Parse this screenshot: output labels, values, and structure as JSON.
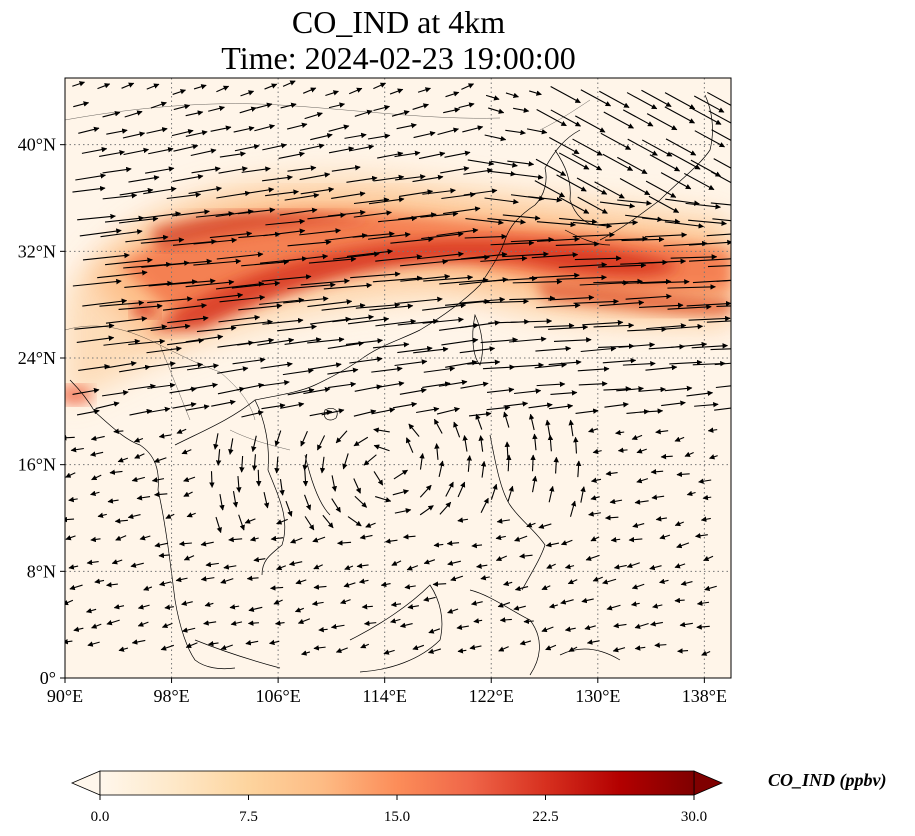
{
  "title": {
    "line1": "CO_IND at 4km",
    "line2": "Time: 2024-02-23 19:00:00"
  },
  "map": {
    "extent": {
      "lon_min": 90,
      "lon_max": 140,
      "lat_min": 0,
      "lat_max": 45
    },
    "gridlines": "dotted",
    "lon_ticks": [
      {
        "value": 90,
        "label": "90°E"
      },
      {
        "value": 98,
        "label": "98°E"
      },
      {
        "value": 106,
        "label": "106°E"
      },
      {
        "value": 114,
        "label": "114°E"
      },
      {
        "value": 122,
        "label": "122°E"
      },
      {
        "value": 130,
        "label": "130°E"
      },
      {
        "value": 138,
        "label": "138°E"
      }
    ],
    "lat_ticks": [
      {
        "value": 0,
        "label": "0°"
      },
      {
        "value": 8,
        "label": "8°N"
      },
      {
        "value": 16,
        "label": "16°N"
      },
      {
        "value": 24,
        "label": "24°N"
      },
      {
        "value": 32,
        "label": "32°N"
      },
      {
        "value": 40,
        "label": "40°N"
      }
    ],
    "field": "CO_IND concentration (OrRd colormap)",
    "plume_band": "high values along ~25–35°N from 95°E to 140°E",
    "vectors": "wind vectors; strong westerlies north of 20°N, weaker easterlies to the south"
  },
  "colorbar": {
    "label": "CO_IND (ppbv)",
    "min": 0,
    "max": 30,
    "ticks": [
      "0.0",
      "7.5",
      "15.0",
      "22.5",
      "30.0"
    ],
    "colors": [
      "#fff7ec",
      "#fee8c8",
      "#fdd49e",
      "#fdbb84",
      "#fc8d59",
      "#ef6548",
      "#d7301f",
      "#b30000",
      "#7f0000"
    ]
  }
}
